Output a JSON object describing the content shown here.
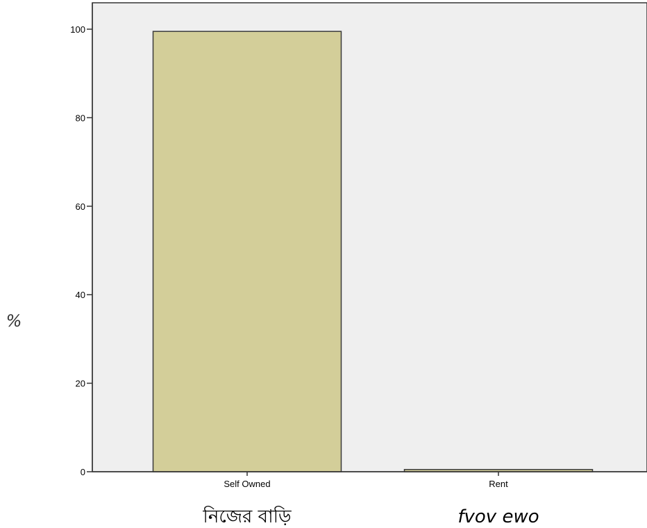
{
  "chart_data": {
    "type": "bar",
    "categories": [
      "Self Owned",
      "Rent"
    ],
    "category_subtitles": [
      "নিজের বাড়ি",
      "fvov ewo"
    ],
    "values": [
      99.5,
      0.5
    ],
    "title": "",
    "xlabel": "",
    "ylabel": "%",
    "ylim": [
      0,
      100
    ],
    "yticks": [
      0,
      20,
      40,
      60,
      80,
      100
    ],
    "grid": false,
    "legend": "none"
  },
  "colors": {
    "plot_background": "#efefef",
    "bar_fill": "#d3ce99",
    "bar_stroke": "#3a3a3a",
    "axis": "#333333"
  }
}
